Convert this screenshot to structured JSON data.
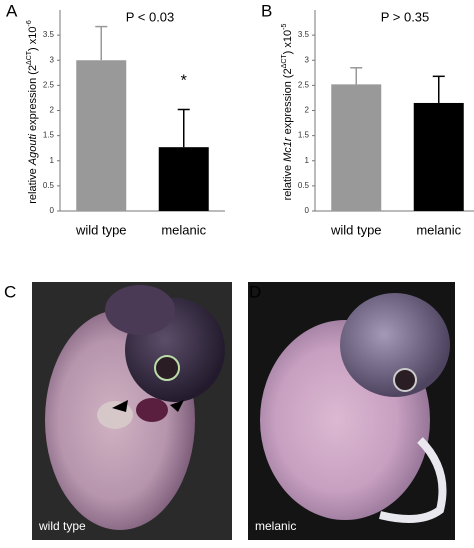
{
  "chart_data": [
    {
      "type": "bar",
      "panel_label": "A",
      "title": "P < 0.03",
      "annotation": "*",
      "ylabel": [
        "relative ",
        "Agouti",
        " expression (2",
        "ΔCT",
        ") x10",
        "-6"
      ],
      "categories": [
        "wild type",
        "melanic"
      ],
      "values": [
        3.0,
        1.27
      ],
      "errors": [
        0.67,
        0.75
      ],
      "colors": [
        "#999999",
        "#000000"
      ],
      "ylim": [
        0,
        4
      ],
      "yticks": [
        0,
        0.5,
        1,
        1.5,
        2,
        2.5,
        3,
        3.5
      ]
    },
    {
      "type": "bar",
      "panel_label": "B",
      "title": "P > 0.35",
      "ylabel": [
        "relative ",
        "Mc1r",
        " expression (2",
        "ΔCT",
        ") x10",
        "-5"
      ],
      "categories": [
        "wild type",
        "melanic"
      ],
      "values": [
        2.52,
        2.15
      ],
      "errors": [
        0.33,
        0.53
      ],
      "colors": [
        "#999999",
        "#000000"
      ],
      "ylim": [
        0,
        4
      ],
      "yticks": [
        0,
        0.5,
        1,
        1.5,
        2,
        2.5,
        3,
        3.5
      ]
    }
  ],
  "panels": [
    {
      "label": "C",
      "caption": "wild type"
    },
    {
      "label": "D",
      "caption": "melanic"
    }
  ]
}
